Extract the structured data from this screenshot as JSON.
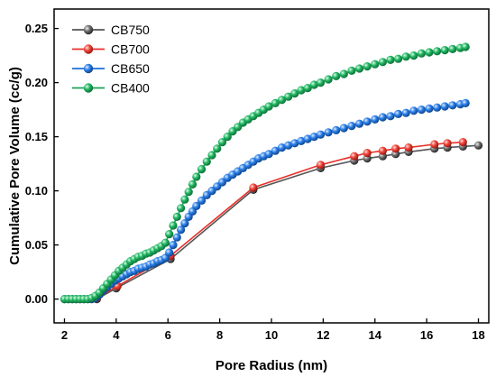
{
  "chart_data": {
    "type": "line",
    "title": "",
    "xlabel": "Pore Radius (nm)",
    "ylabel": "Cumulative Pore Volume (cc/g)",
    "xlim": [
      1.6,
      18.4
    ],
    "ylim": [
      -0.022,
      0.268
    ],
    "xticks": [
      2,
      4,
      6,
      8,
      10,
      12,
      14,
      16,
      18
    ],
    "yticks": [
      0.0,
      0.05,
      0.1,
      0.15,
      0.2,
      0.25
    ],
    "xtick_labels": [
      "2",
      "4",
      "6",
      "8",
      "10",
      "12",
      "14",
      "16",
      "18"
    ],
    "ytick_labels": [
      "0.00",
      "0.05",
      "0.10",
      "0.15",
      "0.20",
      "0.25"
    ],
    "grid": false,
    "legend_position": "top-left",
    "series": [
      {
        "name": "CB750",
        "color": "#555555",
        "x": [
          3.25,
          4.0,
          6.1,
          9.3,
          11.9,
          13.2,
          13.7,
          14.3,
          14.8,
          15.3,
          16.3,
          16.8,
          17.4,
          18.0
        ],
        "y": [
          0.0,
          0.01,
          0.037,
          0.101,
          0.121,
          0.128,
          0.13,
          0.132,
          0.134,
          0.136,
          0.139,
          0.14,
          0.141,
          0.142
        ]
      },
      {
        "name": "CB700",
        "color": "#e8312a",
        "x": [
          3.25,
          4.05,
          6.1,
          9.3,
          11.9,
          13.2,
          13.7,
          14.3,
          14.8,
          15.3,
          16.3,
          16.8,
          17.4
        ],
        "y": [
          0.001,
          0.012,
          0.04,
          0.103,
          0.124,
          0.132,
          0.135,
          0.137,
          0.139,
          0.14,
          0.143,
          0.144,
          0.145
        ]
      },
      {
        "name": "CB650",
        "color": "#1f6fd6",
        "x": [
          2.0,
          2.15,
          2.3,
          2.45,
          2.6,
          2.75,
          2.9,
          3.05,
          3.2,
          3.35,
          3.5,
          3.65,
          3.8,
          3.95,
          4.1,
          4.25,
          4.4,
          4.55,
          4.7,
          4.85,
          5.0,
          5.15,
          5.3,
          5.45,
          5.6,
          5.75,
          5.9,
          6.05,
          6.2,
          6.35,
          6.5,
          6.65,
          6.8,
          6.95,
          7.1,
          7.3,
          7.5,
          7.7,
          7.9,
          8.1,
          8.3,
          8.5,
          8.7,
          8.9,
          9.1,
          9.3,
          9.5,
          9.7,
          9.9,
          10.15,
          10.4,
          10.65,
          10.9,
          11.15,
          11.4,
          11.65,
          11.9,
          12.2,
          12.5,
          12.8,
          13.1,
          13.4,
          13.7,
          14.0,
          14.3,
          14.6,
          14.9,
          15.2,
          15.5,
          15.8,
          16.1,
          16.4,
          16.7,
          17.0,
          17.3,
          17.5
        ],
        "y": [
          0.0,
          0.0,
          0.0,
          0.0,
          0.0,
          0.0,
          0.0,
          0.0,
          0.001,
          0.004,
          0.008,
          0.011,
          0.014,
          0.017,
          0.019,
          0.021,
          0.023,
          0.025,
          0.026,
          0.028,
          0.029,
          0.03,
          0.032,
          0.033,
          0.035,
          0.036,
          0.038,
          0.043,
          0.05,
          0.057,
          0.064,
          0.07,
          0.076,
          0.081,
          0.086,
          0.091,
          0.096,
          0.1,
          0.104,
          0.108,
          0.112,
          0.115,
          0.118,
          0.121,
          0.124,
          0.127,
          0.13,
          0.132,
          0.134,
          0.137,
          0.14,
          0.142,
          0.144,
          0.146,
          0.148,
          0.15,
          0.152,
          0.154,
          0.156,
          0.158,
          0.16,
          0.162,
          0.164,
          0.166,
          0.168,
          0.169,
          0.171,
          0.172,
          0.174,
          0.175,
          0.176,
          0.177,
          0.178,
          0.179,
          0.18,
          0.181
        ]
      },
      {
        "name": "CB400",
        "color": "#1aa35a",
        "x": [
          2.0,
          2.15,
          2.3,
          2.45,
          2.6,
          2.75,
          2.9,
          3.05,
          3.2,
          3.35,
          3.5,
          3.65,
          3.8,
          3.95,
          4.1,
          4.25,
          4.4,
          4.55,
          4.7,
          4.85,
          5.0,
          5.15,
          5.3,
          5.45,
          5.6,
          5.75,
          5.9,
          6.05,
          6.2,
          6.35,
          6.5,
          6.65,
          6.8,
          6.95,
          7.1,
          7.3,
          7.5,
          7.7,
          7.9,
          8.1,
          8.3,
          8.5,
          8.7,
          8.9,
          9.1,
          9.3,
          9.5,
          9.7,
          9.9,
          10.15,
          10.4,
          10.65,
          10.9,
          11.15,
          11.4,
          11.65,
          11.9,
          12.2,
          12.5,
          12.8,
          13.1,
          13.4,
          13.7,
          14.0,
          14.3,
          14.6,
          14.9,
          15.2,
          15.5,
          15.8,
          16.1,
          16.4,
          16.7,
          17.0,
          17.3,
          17.5
        ],
        "y": [
          0.0,
          0.0,
          0.0,
          0.0,
          0.0,
          0.0,
          0.0,
          0.001,
          0.003,
          0.006,
          0.01,
          0.014,
          0.018,
          0.022,
          0.026,
          0.029,
          0.032,
          0.035,
          0.037,
          0.039,
          0.04,
          0.042,
          0.043,
          0.045,
          0.047,
          0.049,
          0.052,
          0.06,
          0.068,
          0.076,
          0.084,
          0.092,
          0.099,
          0.106,
          0.113,
          0.12,
          0.127,
          0.133,
          0.139,
          0.145,
          0.15,
          0.155,
          0.159,
          0.163,
          0.166,
          0.169,
          0.172,
          0.175,
          0.178,
          0.181,
          0.184,
          0.187,
          0.19,
          0.193,
          0.195,
          0.198,
          0.2,
          0.203,
          0.206,
          0.208,
          0.211,
          0.213,
          0.215,
          0.217,
          0.219,
          0.221,
          0.222,
          0.224,
          0.225,
          0.227,
          0.228,
          0.229,
          0.23,
          0.231,
          0.232,
          0.233
        ]
      }
    ]
  }
}
